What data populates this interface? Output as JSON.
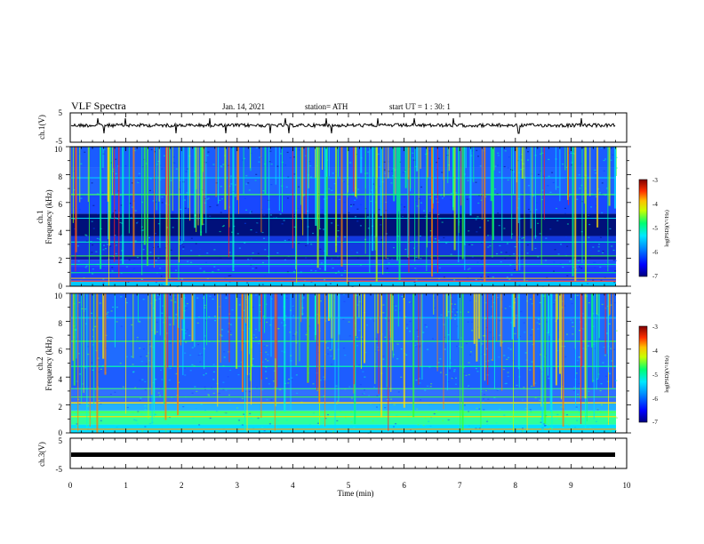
{
  "header": {
    "title": "VLF Spectra",
    "date": "Jan. 14, 2021",
    "station": "station= ATH",
    "start": "start  UT =   1 : 30: 1"
  },
  "chart_data": {
    "type": "heatmap",
    "x_axis": {
      "label": "Time (min)",
      "range": [
        0,
        10
      ],
      "ticks": [
        "0",
        "1",
        "2",
        "3",
        "4",
        "5",
        "6",
        "7",
        "8",
        "9",
        "10"
      ]
    },
    "panels": [
      {
        "name": "ch1-voltage",
        "ylabel": "ch.1(V)",
        "ylim": [
          -5,
          5
        ],
        "ticks": [
          "5",
          "-5"
        ],
        "type": "line"
      },
      {
        "name": "ch1-spectrogram",
        "ylabel_line1": "ch.1",
        "ylabel_line2": "Frequency (kHz)",
        "ylim": [
          0,
          10
        ],
        "ticks": [
          "10",
          "8",
          "6",
          "4",
          "2",
          "0"
        ],
        "type": "heatmap"
      },
      {
        "name": "ch2-spectrogram",
        "ylabel_line1": "ch.2",
        "ylabel_line2": "Frequency (kHz)",
        "ylim": [
          0,
          10
        ],
        "ticks": [
          "10",
          "8",
          "6",
          "4",
          "2",
          "0"
        ],
        "type": "heatmap"
      },
      {
        "name": "ch3-voltage",
        "ylabel": "ch.3(V)",
        "ylim": [
          -5,
          5
        ],
        "ticks": [
          "5",
          "-5"
        ],
        "type": "line"
      }
    ],
    "colorbar": {
      "label": "log(PSD)(V²/Hz)",
      "range": [
        -7,
        -3
      ],
      "ticks": [
        "-3",
        "-4",
        "-5",
        "-6",
        "-7"
      ],
      "colors": [
        "#00007f",
        "#0000ff",
        "#00a0ff",
        "#00ffff",
        "#00ff66",
        "#c8ff00",
        "#ffdd00",
        "#ff6a00",
        "#e00000",
        "#7f0000"
      ]
    }
  }
}
